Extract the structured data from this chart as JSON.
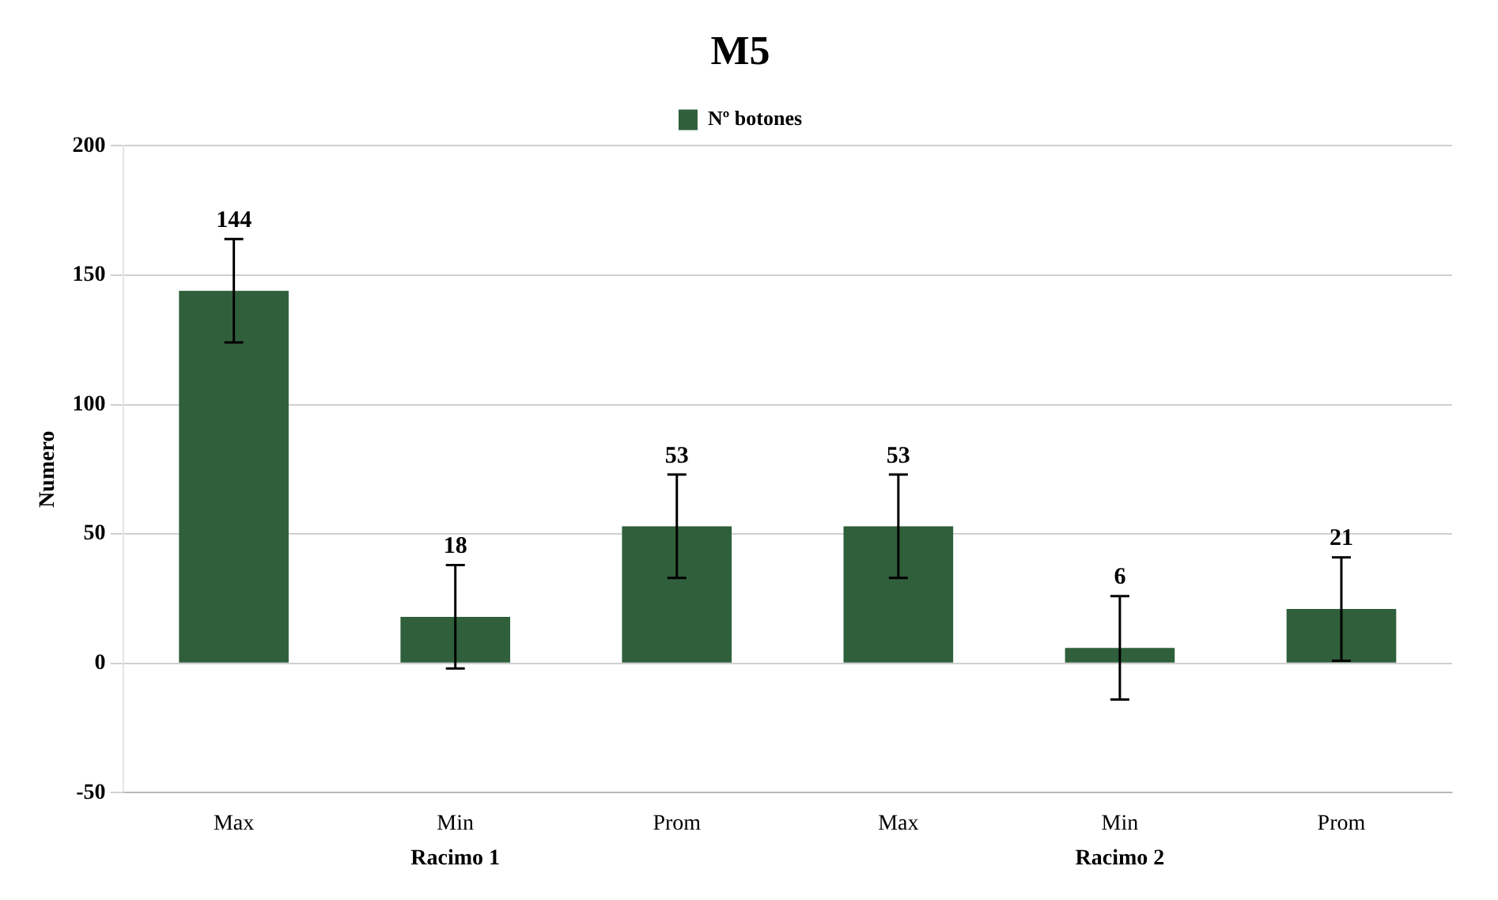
{
  "chart_data": {
    "type": "bar",
    "title": "M5",
    "ylabel": "Numero",
    "categories": [
      "Max",
      "Min",
      "Prom",
      "Max",
      "Min",
      "Prom"
    ],
    "series": [
      {
        "name": "Nº botones",
        "color": "#2f5f3b",
        "values": [
          144,
          18,
          53,
          53,
          6,
          21
        ],
        "errors": [
          20,
          20,
          20,
          20,
          20,
          20
        ]
      }
    ],
    "ylim": [
      -50,
      200
    ],
    "yticks": [
      -50,
      0,
      50,
      100,
      150,
      200
    ],
    "grid": "y",
    "legend": "top",
    "data_labels": true,
    "annotations": [
      "Racimo 1",
      "Racimo 2"
    ]
  }
}
